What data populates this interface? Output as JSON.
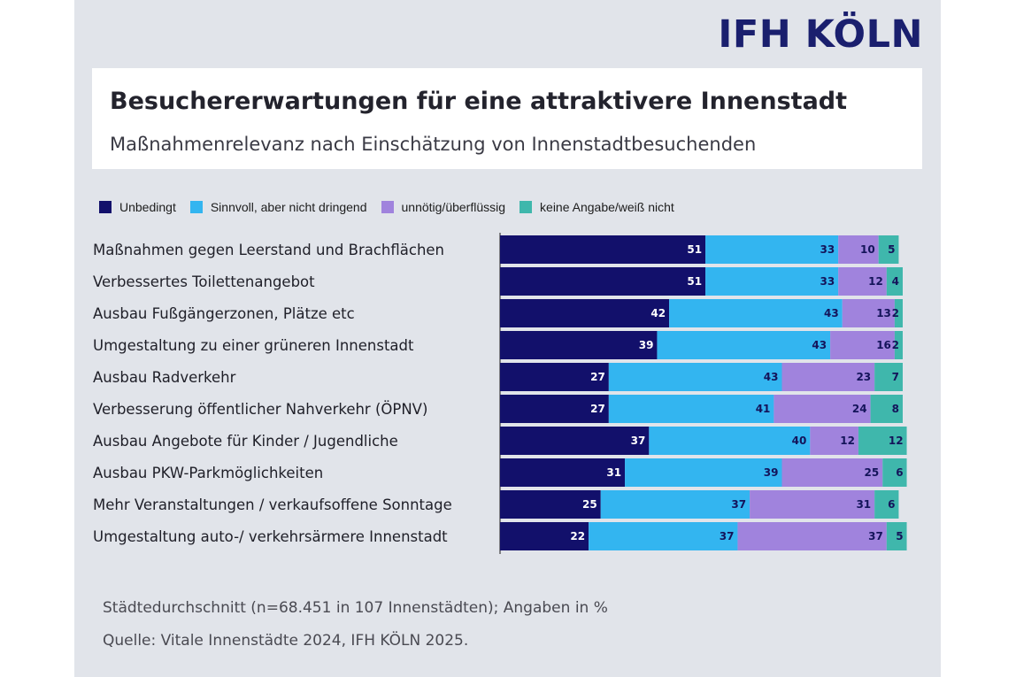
{
  "logo": "IFH KÖLN",
  "colors": {
    "panel": "#e1e4ea",
    "series": [
      "#12106b",
      "#33b5f0",
      "#a083dd",
      "#3fb7ac"
    ],
    "logo": "#1a1f6e"
  },
  "footer": {
    "note": "Städtedurchschnitt (n=68.451 in 107 Innenstädten); Angaben in %",
    "source": "Quelle: Vitale Innenstädte 2024, IFH KÖLN 2025."
  },
  "chart_data": {
    "type": "bar",
    "orientation": "horizontal",
    "stacked": true,
    "title": "Besuchererwartungen für eine attraktivere Innenstadt",
    "subtitle": "Maßnahmenrelevanz nach Einschätzung von Innenstadtbesuchenden",
    "legend_position": "top-left",
    "grid": false,
    "xlim": [
      0,
      100
    ],
    "categories": [
      "Maßnahmen gegen Leerstand und Brachflächen",
      "Verbessertes Toilettenangebot",
      "Ausbau Fußgängerzonen, Plätze etc",
      "Umgestaltung zu einer grüneren Innenstadt",
      "Ausbau Radverkehr",
      "Verbesserung öffentlicher Nahverkehr (ÖPNV)",
      "Ausbau Angebote für Kinder / Jugendliche",
      "Ausbau PKW-Parkmöglichkeiten",
      "Mehr Veranstaltungen / verkaufsoffene Sonntage",
      "Umgestaltung auto-/ verkehrsärmere Innenstadt"
    ],
    "series": [
      {
        "name": "Unbedingt",
        "values": [
          51,
          51,
          42,
          39,
          27,
          27,
          37,
          31,
          25,
          22
        ]
      },
      {
        "name": "Sinnvoll, aber nicht dringend",
        "values": [
          33,
          33,
          43,
          43,
          43,
          41,
          40,
          39,
          37,
          37
        ]
      },
      {
        "name": "unnötig/überflüssig",
        "values": [
          10,
          12,
          13,
          16,
          23,
          24,
          12,
          25,
          31,
          37
        ]
      },
      {
        "name": "keine Angabe/weiß nicht",
        "values": [
          5,
          4,
          2,
          2,
          7,
          8,
          12,
          6,
          6,
          5
        ]
      }
    ]
  }
}
